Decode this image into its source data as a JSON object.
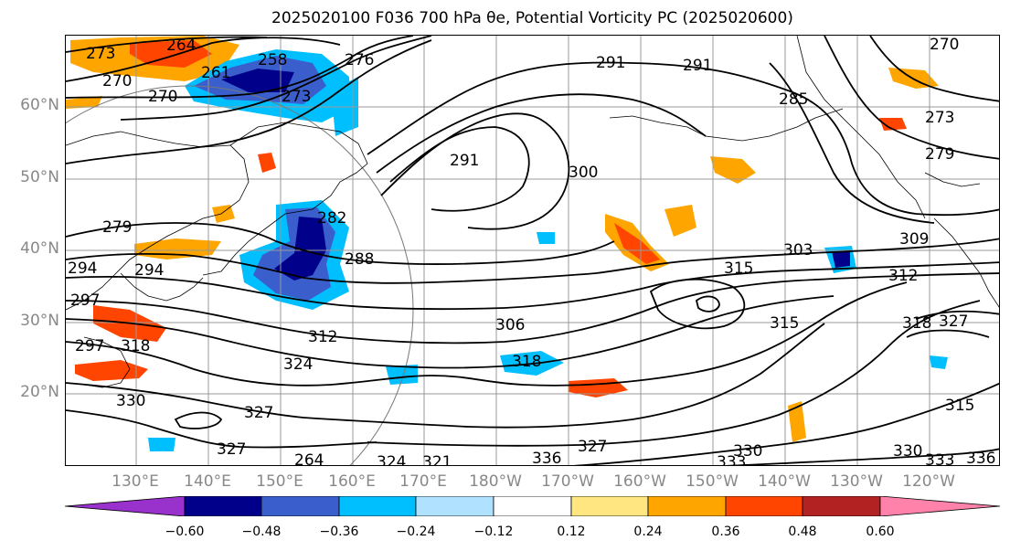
{
  "title": "2025020100 F036 700 hPa θe, Potential Vorticity PC (2025020600)",
  "map": {
    "lat_labels": [
      "60°N",
      "50°N",
      "40°N",
      "30°N",
      "20°N"
    ],
    "lon_labels": [
      "130°E",
      "140°E",
      "150°E",
      "160°E",
      "170°E",
      "180°W",
      "170°W",
      "160°W",
      "150°W",
      "140°W",
      "130°W",
      "120°W"
    ],
    "contour_labels": [
      "273",
      "264",
      "270",
      "261",
      "258",
      "273",
      "276",
      "270",
      "291",
      "291",
      "294",
      "297",
      "291",
      "300",
      "282",
      "288",
      "279",
      "294",
      "297",
      "318",
      "306",
      "312",
      "324",
      "318",
      "315",
      "315",
      "303",
      "309",
      "312",
      "318",
      "327",
      "327",
      "330",
      "327",
      "336",
      "315",
      "330",
      "333",
      "330",
      "333",
      "336",
      "321",
      "324",
      "327",
      "279",
      "273",
      "285",
      "270",
      "264"
    ]
  },
  "colorbar": {
    "tick_labels": [
      "−0.60",
      "−0.48",
      "−0.36",
      "−0.24",
      "−0.12",
      "0.12",
      "0.24",
      "0.36",
      "0.48",
      "0.60"
    ],
    "colors": [
      "#9932cc",
      "#00008b",
      "#3a5fcd",
      "#00bfff",
      "#b0e2ff",
      "#ffffff",
      "#ffe680",
      "#ffa500",
      "#ff4500",
      "#b22222",
      "#ff82ab"
    ]
  }
}
